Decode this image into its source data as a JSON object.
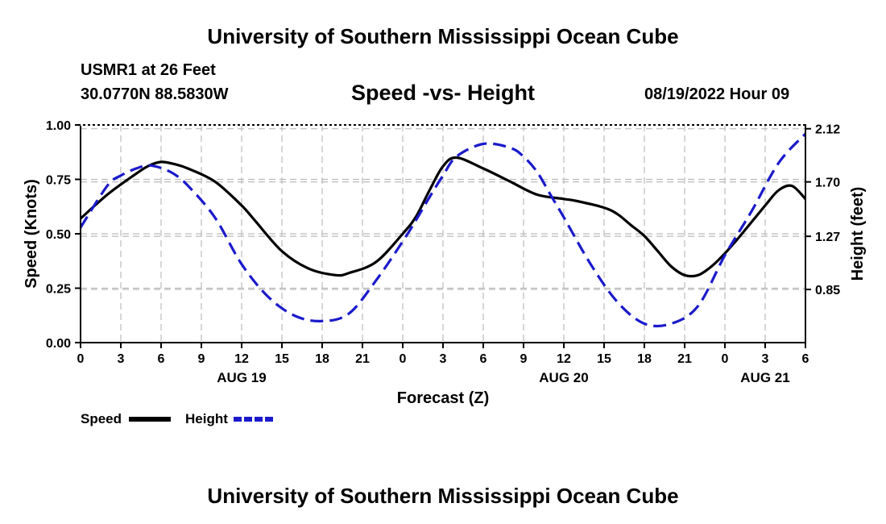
{
  "header": {
    "title": "University of Southern Mississippi Ocean Cube",
    "station": "USMR1 at 26 Feet",
    "coordinates": "30.0770N  88.5830W",
    "subtitle": "Speed -vs- Height",
    "date_hour": "08/19/2022 Hour 09"
  },
  "footer": {
    "title": "University of Southern Mississippi Ocean Cube"
  },
  "chart_data": {
    "type": "line",
    "title": "Speed -vs- Height",
    "xlabel": "Forecast (Z)",
    "ylabel": "Speed (Knots)",
    "y2label": "Height (feet)",
    "grid": true,
    "legend_position": "bottom-left",
    "x_tick_hours": [
      0,
      3,
      6,
      9,
      12,
      15,
      18,
      21,
      24,
      27,
      30,
      33,
      36,
      39,
      42,
      45,
      48,
      51,
      54
    ],
    "x_tick_labels": [
      "0",
      "3",
      "6",
      "9",
      "12",
      "15",
      "18",
      "21",
      "0",
      "3",
      "6",
      "9",
      "12",
      "15",
      "18",
      "21",
      "0",
      "3",
      "6"
    ],
    "day_labels": [
      {
        "hour": 12,
        "label": "AUG 19"
      },
      {
        "hour": 36,
        "label": "AUG 20"
      },
      {
        "hour": 51,
        "label": "AUG 21"
      }
    ],
    "xlim": [
      0,
      54
    ],
    "ylim": [
      0,
      1
    ],
    "y_ticks": [
      0,
      0.25,
      0.5,
      0.75,
      1
    ],
    "y_tick_labels": [
      "0.00",
      "0.25",
      "0.50",
      "0.75",
      "1.00"
    ],
    "y2lim": [
      0.43,
      2.15
    ],
    "y2_ticks": [
      0.85,
      1.27,
      1.7,
      2.12
    ],
    "y2_tick_labels": [
      "0.85",
      "1.27",
      "1.70",
      "2.12"
    ],
    "series": [
      {
        "name": "Speed",
        "axis": "left",
        "color": "#000000",
        "dash": "solid",
        "x": [
          0,
          2,
          4,
          5,
          6,
          7,
          8,
          10,
          12,
          13,
          15,
          17,
          19,
          20,
          22,
          24,
          25,
          26,
          27,
          28,
          30,
          32,
          34,
          36,
          37,
          39,
          40,
          41,
          42,
          43,
          44,
          45,
          46,
          47,
          48,
          49,
          51,
          52,
          53,
          54
        ],
        "y": [
          0.57,
          0.68,
          0.77,
          0.81,
          0.83,
          0.82,
          0.8,
          0.74,
          0.63,
          0.56,
          0.42,
          0.34,
          0.31,
          0.32,
          0.37,
          0.5,
          0.58,
          0.7,
          0.81,
          0.85,
          0.8,
          0.74,
          0.68,
          0.66,
          0.65,
          0.62,
          0.59,
          0.54,
          0.49,
          0.42,
          0.35,
          0.31,
          0.31,
          0.35,
          0.41,
          0.48,
          0.63,
          0.7,
          0.72,
          0.66
        ]
      },
      {
        "name": "Height",
        "axis": "right",
        "color": "#1a1acc",
        "dash": "dashed",
        "x": [
          0,
          2,
          3,
          4,
          5,
          6,
          7,
          8,
          10,
          12,
          14,
          16,
          18,
          20,
          22,
          24,
          25,
          26,
          27,
          28,
          30,
          32,
          33,
          34,
          35,
          36,
          38,
          40,
          42,
          44,
          46,
          48,
          50,
          52,
          54
        ],
        "y": [
          1.34,
          1.67,
          1.75,
          1.8,
          1.83,
          1.81,
          1.76,
          1.67,
          1.42,
          1.05,
          0.79,
          0.64,
          0.6,
          0.66,
          0.92,
          1.23,
          1.4,
          1.58,
          1.75,
          1.9,
          2.0,
          1.97,
          1.9,
          1.78,
          1.6,
          1.42,
          1.05,
          0.75,
          0.58,
          0.58,
          0.72,
          1.12,
          1.47,
          1.85,
          2.08
        ]
      }
    ]
  },
  "legend": {
    "speed_label": "Speed",
    "height_label": "Height"
  }
}
